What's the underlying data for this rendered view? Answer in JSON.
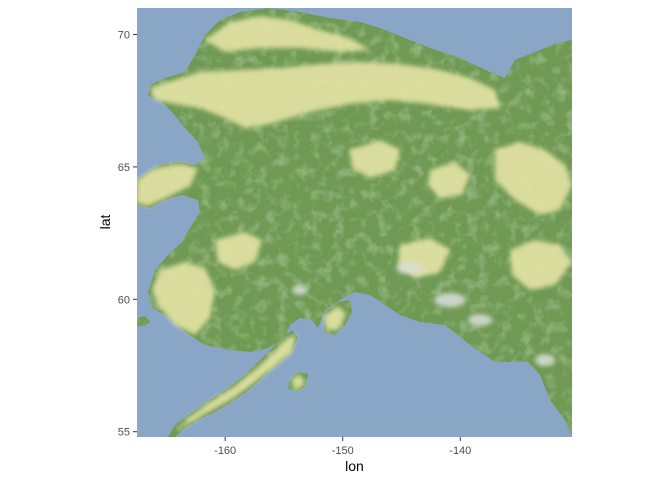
{
  "chart_data": {
    "type": "raster-map",
    "title": "",
    "xlabel": "lon",
    "ylabel": "lat",
    "xlim": [
      -167.5,
      -130.5
    ],
    "ylim": [
      54.8,
      71.0
    ],
    "x_ticks": [
      {
        "value": -160,
        "label": "-160"
      },
      {
        "value": -150,
        "label": "-150"
      },
      {
        "value": -140,
        "label": "-140"
      }
    ],
    "y_ticks": [
      {
        "value": 70,
        "label": "70"
      },
      {
        "value": 65,
        "label": "65"
      },
      {
        "value": 60,
        "label": "60"
      },
      {
        "value": 55,
        "label": "55"
      }
    ],
    "grid": false,
    "legend": "none",
    "colors": {
      "water": "#8aa6c6",
      "forest": "#6f9a52",
      "forest_dark": "#5c8a45",
      "tundra": "#e4e3a4",
      "tundra_light": "#eeedbb",
      "glacier": "#d9dedc"
    }
  }
}
